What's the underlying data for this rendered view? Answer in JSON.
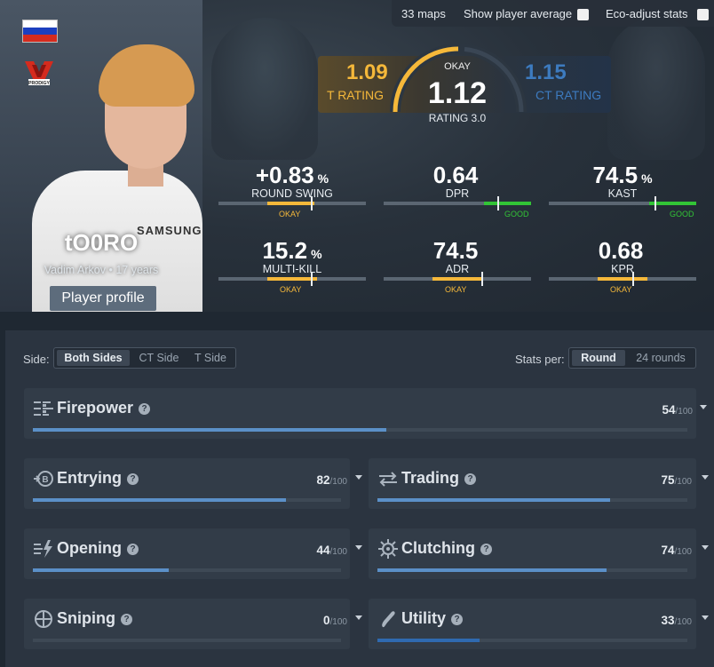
{
  "topbar": {
    "maps": "33 maps",
    "show_avg_label": "Show player average",
    "eco_label": "Eco-adjust stats"
  },
  "player": {
    "nickname": "tO0RO",
    "realname": "Vadim Arkov",
    "age": "17 years",
    "separator": "•",
    "profile_button": "Player profile",
    "team_logo_text": "PRODIGY",
    "sponsor_text": "SAMSUNG"
  },
  "rating": {
    "t_value": "1.09",
    "t_label": "T RATING",
    "ct_value": "1.15",
    "ct_label": "CT RATING",
    "level": "OKAY",
    "value": "1.12",
    "label": "RATING 3.0",
    "gauge_fraction": 0.55
  },
  "stats": [
    {
      "value": "+0.83",
      "unit": "%",
      "label": "ROUND SWING",
      "level": "OKAY",
      "fill_start": 0.33,
      "fill_end": 0.65,
      "marker": 0.63
    },
    {
      "value": "0.64",
      "unit": "",
      "label": "DPR",
      "level": "GOOD",
      "fill_start": 0.68,
      "fill_end": 1.0,
      "marker": 0.78
    },
    {
      "value": "74.5",
      "unit": "%",
      "label": "KAST",
      "level": "GOOD",
      "fill_start": 0.68,
      "fill_end": 1.0,
      "marker": 0.72
    },
    {
      "value": "15.2",
      "unit": "%",
      "label": "MULTI-KILL",
      "level": "OKAY",
      "fill_start": 0.33,
      "fill_end": 0.67,
      "marker": 0.63
    },
    {
      "value": "74.5",
      "unit": "",
      "label": "ADR",
      "level": "OKAY",
      "fill_start": 0.33,
      "fill_end": 0.67,
      "marker": 0.67
    },
    {
      "value": "0.68",
      "unit": "",
      "label": "KPR",
      "level": "OKAY",
      "fill_start": 0.33,
      "fill_end": 0.67,
      "marker": 0.57
    }
  ],
  "filters": {
    "side_label": "Side:",
    "sides": [
      "Both Sides",
      "CT Side",
      "T Side"
    ],
    "active_side": "Both Sides",
    "statsper_label": "Stats per:",
    "per_options": [
      "Round",
      "24 rounds"
    ],
    "active_per": "Round"
  },
  "categories": [
    {
      "name": "Firepower",
      "score": "54",
      "max": "/100",
      "fraction": 0.54,
      "icon": "firepower-icon"
    },
    {
      "name": "Entrying",
      "score": "82",
      "max": "/100",
      "fraction": 0.82,
      "icon": "entrying-icon"
    },
    {
      "name": "Trading",
      "score": "75",
      "max": "/100",
      "fraction": 0.75,
      "icon": "trading-icon"
    },
    {
      "name": "Opening",
      "score": "44",
      "max": "/100",
      "fraction": 0.44,
      "icon": "opening-icon"
    },
    {
      "name": "Clutching",
      "score": "74",
      "max": "/100",
      "fraction": 0.74,
      "icon": "clutching-icon"
    },
    {
      "name": "Sniping",
      "score": "0",
      "max": "/100",
      "fraction": 0.0,
      "icon": "crosshair-icon"
    },
    {
      "name": "Utility",
      "score": "33",
      "max": "/100",
      "fraction": 0.33,
      "icon": "utility-icon"
    }
  ],
  "colors": {
    "t_side": "#f5b83a",
    "ct_side": "#3d7bbf",
    "good": "#32c436",
    "okay": "#f5b83a",
    "bar_fill": "#5b90c8"
  },
  "flag": {
    "country": "Russia",
    "stripes": [
      "#ffffff",
      "#1c3fbf",
      "#d52b1e"
    ]
  }
}
